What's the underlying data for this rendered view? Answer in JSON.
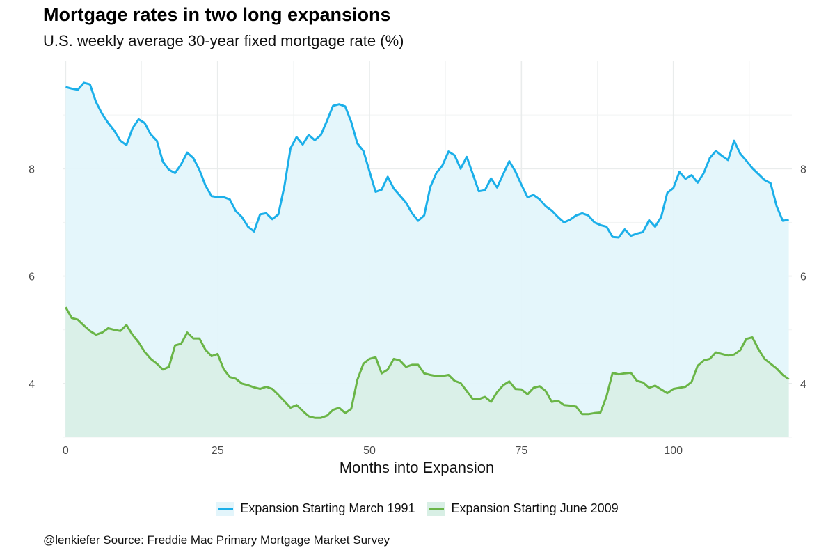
{
  "title": "Mortgage rates in two long expansions",
  "subtitle": "U.S. weekly average 30-year fixed mortgage rate (%)",
  "caption": "@lenkiefer Source: Freddie Mac Primary Mortgage Market Survey",
  "colors": {
    "series1": "#1bafe9",
    "series1_fill": "#e3f5fb",
    "series2": "#6ab547",
    "series2_fill": "#d8efe5",
    "grid": "#e9ecec"
  },
  "chart_data": {
    "type": "area",
    "xlabel": "Months into Expansion",
    "ylabel": "",
    "xlim": [
      -0.5,
      119.5
    ],
    "ylim": [
      3.0,
      10.0
    ],
    "x_ticks": [
      0,
      25,
      50,
      75,
      100
    ],
    "y_ticks": [
      4,
      6,
      8
    ],
    "grid": true,
    "legend_position": "bottom",
    "series": [
      {
        "name": "Expansion Starting March 1991",
        "values": [
          9.52,
          9.49,
          9.47,
          9.6,
          9.57,
          9.24,
          9.02,
          8.85,
          8.71,
          8.52,
          8.44,
          8.75,
          8.92,
          8.85,
          8.64,
          8.52,
          8.13,
          7.98,
          7.92,
          8.08,
          8.3,
          8.2,
          7.98,
          7.69,
          7.49,
          7.47,
          7.47,
          7.43,
          7.21,
          7.1,
          6.92,
          6.83,
          7.15,
          7.17,
          7.06,
          7.15,
          7.68,
          8.38,
          8.59,
          8.45,
          8.63,
          8.53,
          8.63,
          8.89,
          9.17,
          9.2,
          9.16,
          8.87,
          8.47,
          8.33,
          7.95,
          7.57,
          7.61,
          7.85,
          7.63,
          7.5,
          7.37,
          7.17,
          7.03,
          7.13,
          7.66,
          7.92,
          8.06,
          8.32,
          8.25,
          8.0,
          8.22,
          7.9,
          7.58,
          7.6,
          7.82,
          7.65,
          7.9,
          8.14,
          7.95,
          7.7,
          7.47,
          7.51,
          7.43,
          7.3,
          7.22,
          7.1,
          7.0,
          7.05,
          7.13,
          7.17,
          7.13,
          7.0,
          6.95,
          6.92,
          6.73,
          6.72,
          6.87,
          6.75,
          6.79,
          6.82,
          7.04,
          6.92,
          7.1,
          7.55,
          7.64,
          7.94,
          7.81,
          7.88,
          7.74,
          7.92,
          8.2,
          8.33,
          8.24,
          8.16,
          8.52,
          8.28,
          8.15,
          8.01,
          7.9,
          7.79,
          7.73,
          7.3,
          7.03,
          7.05
        ]
      },
      {
        "name": "Expansion Starting June 2009",
        "values": [
          5.42,
          5.22,
          5.19,
          5.08,
          4.98,
          4.91,
          4.95,
          5.03,
          5.0,
          4.98,
          5.09,
          4.91,
          4.77,
          4.59,
          4.46,
          4.37,
          4.26,
          4.31,
          4.71,
          4.74,
          4.95,
          4.84,
          4.84,
          4.63,
          4.51,
          4.55,
          4.27,
          4.12,
          4.09,
          4.0,
          3.97,
          3.93,
          3.9,
          3.94,
          3.9,
          3.79,
          3.67,
          3.55,
          3.6,
          3.49,
          3.39,
          3.36,
          3.36,
          3.4,
          3.51,
          3.55,
          3.45,
          3.53,
          4.07,
          4.37,
          4.46,
          4.49,
          4.19,
          4.26,
          4.46,
          4.43,
          4.31,
          4.35,
          4.35,
          4.19,
          4.16,
          4.14,
          4.14,
          4.16,
          4.05,
          4.01,
          3.86,
          3.71,
          3.71,
          3.75,
          3.66,
          3.84,
          3.97,
          4.04,
          3.9,
          3.89,
          3.8,
          3.92,
          3.95,
          3.86,
          3.66,
          3.68,
          3.6,
          3.59,
          3.57,
          3.43,
          3.43,
          3.45,
          3.46,
          3.76,
          4.2,
          4.17,
          4.19,
          4.2,
          4.05,
          4.02,
          3.92,
          3.96,
          3.89,
          3.82,
          3.9,
          3.92,
          3.94,
          4.03,
          4.33,
          4.43,
          4.46,
          4.58,
          4.55,
          4.52,
          4.54,
          4.62,
          4.83,
          4.86,
          4.64,
          4.46,
          4.37,
          4.28,
          4.16,
          4.08
        ]
      }
    ]
  }
}
